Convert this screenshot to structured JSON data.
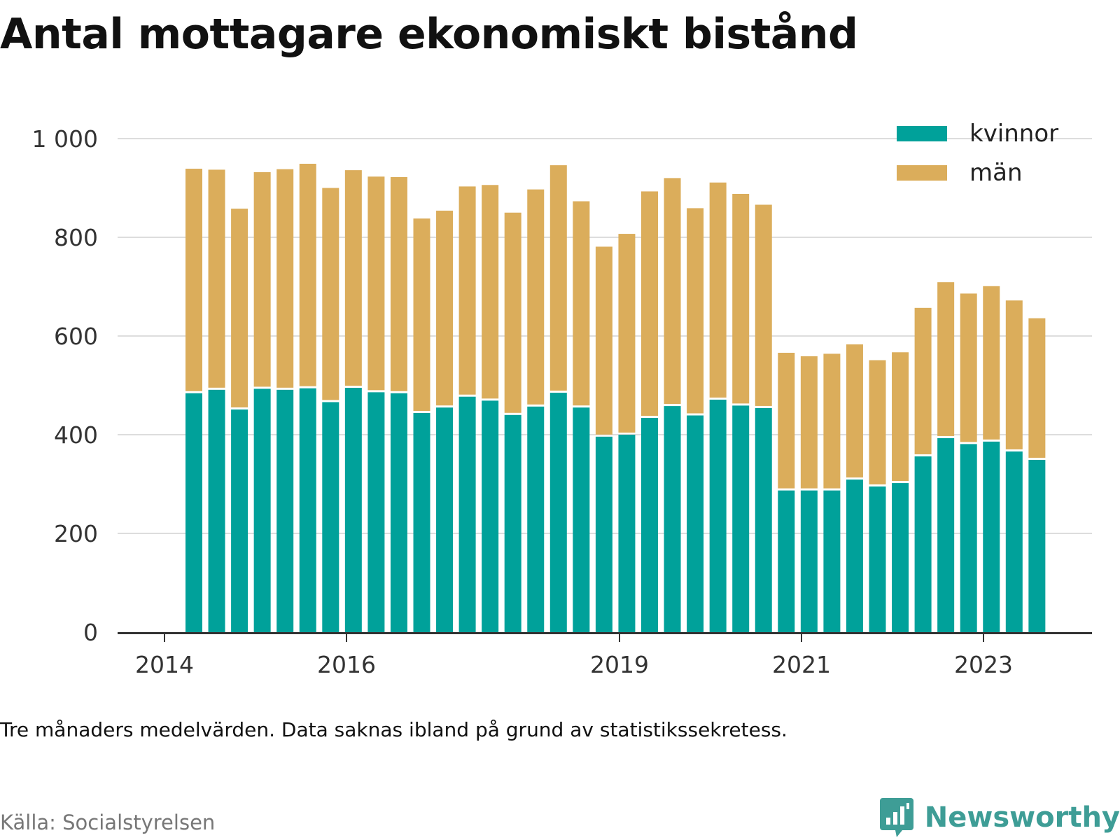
{
  "header": {
    "title": "Antal mottagare ekonomiskt bistånd"
  },
  "footer": {
    "note": "Tre månaders medelvärden. Data saknas ibland på grund av statistikssekretess.",
    "source": "Källa: Socialstyrelsen",
    "brand": "Newsworthy",
    "brand_icon": "chart-bubble-icon",
    "brand_color": "#3e9d96"
  },
  "chart_data": {
    "type": "bar",
    "stacked": true,
    "grid": true,
    "legend_position": "top-right",
    "ylim": [
      0,
      1000
    ],
    "yticks": [
      0,
      200,
      400,
      600,
      800,
      1000
    ],
    "ytick_labels": [
      "0",
      "200",
      "400",
      "600",
      "800",
      "1 000"
    ],
    "xticks": [
      "2014",
      "2016",
      "2019",
      "2021",
      "2023"
    ],
    "series": [
      {
        "name": "kvinnor",
        "color": "#00a19a",
        "values": [
          484,
          491,
          451,
          493,
          491,
          494,
          466,
          495,
          486,
          484,
          444,
          455,
          477,
          469,
          440,
          457,
          485,
          455,
          396,
          400,
          434,
          458,
          439,
          471,
          459,
          454,
          287,
          287,
          287,
          309,
          295,
          302,
          356,
          393,
          381,
          386,
          366,
          349
        ]
      },
      {
        "name": "män",
        "color": "#dbad5b",
        "values": [
          455,
          446,
          407,
          439,
          447,
          455,
          434,
          441,
          437,
          438,
          394,
          399,
          426,
          437,
          410,
          440,
          461,
          418,
          385,
          407,
          459,
          462,
          420,
          440,
          429,
          412,
          279,
          272,
          277,
          274,
          256,
          265,
          301,
          316,
          305,
          315,
          306,
          287
        ]
      }
    ]
  }
}
